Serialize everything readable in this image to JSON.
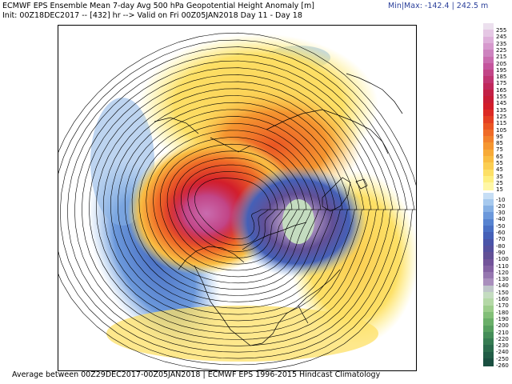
{
  "header": {
    "title": "ECMWF EPS Ensemble Mean 7-day Avg 500 hPa Geopotential Height Anomaly [m]",
    "init_line": "Init: 00Z18DEC2017 -- [432] hr --> Valid on Fri 00Z05JAN2018   Day 11 - Day 18",
    "minmax": "Min|Max: -142.4 | 242.5 m"
  },
  "footer": {
    "text": "Average between 00Z29DEC2017-00Z05JAN2018 | ECMWF EPS 1996-2015 Hindcast Climatology"
  },
  "colorbar": {
    "positive_labels": [
      "255",
      "245",
      "235",
      "225",
      "215",
      "205",
      "195",
      "185",
      "175",
      "165",
      "155",
      "145",
      "135",
      "125",
      "115",
      "105",
      "95",
      "85",
      "75",
      "65",
      "55",
      "45",
      "35",
      "25",
      "15"
    ],
    "negative_labels": [
      "-10",
      "-20",
      "-30",
      "-40",
      "-50",
      "-60",
      "-70",
      "-80",
      "-90",
      "-100",
      "-110",
      "-120",
      "-130",
      "-140",
      "-150",
      "-160",
      "-170",
      "-180",
      "-190",
      "-200",
      "-210",
      "-220",
      "-230",
      "-240",
      "-250",
      "-260"
    ],
    "positive_colors": [
      "#ece0ee",
      "#e5c7e4",
      "#deb0da",
      "#d699cd",
      "#cd83bf",
      "#c96caf",
      "#c4559d",
      "#c24587",
      "#c03572",
      "#c0285c",
      "#c22045",
      "#c81c35",
      "#d21d2a",
      "#dc2a24",
      "#e43f22",
      "#ea5523",
      "#ef6b27",
      "#f2812b",
      "#f59630",
      "#f7aa37",
      "#f9bd42",
      "#fbce52",
      "#fde066",
      "#feef80",
      "#fff7a6"
    ],
    "negative_colors": [
      "#c6def5",
      "#a6c9ee",
      "#86b0e4",
      "#6b98db",
      "#5783d0",
      "#4a70c4",
      "#4560b7",
      "#4a54a8",
      "#55509e",
      "#625096",
      "#73549a",
      "#8462a3",
      "#9677b0",
      "#a98fbd",
      "#bfc6c9",
      "#c4dcc0",
      "#b4d8a6",
      "#9ccd8c",
      "#82bf78",
      "#6aaf69",
      "#569f5f",
      "#448d58",
      "#367c52",
      "#2a6b4c",
      "#215c46",
      "#1a4f40"
    ],
    "contour_color": "#000000",
    "coastline_color": "#000000"
  }
}
